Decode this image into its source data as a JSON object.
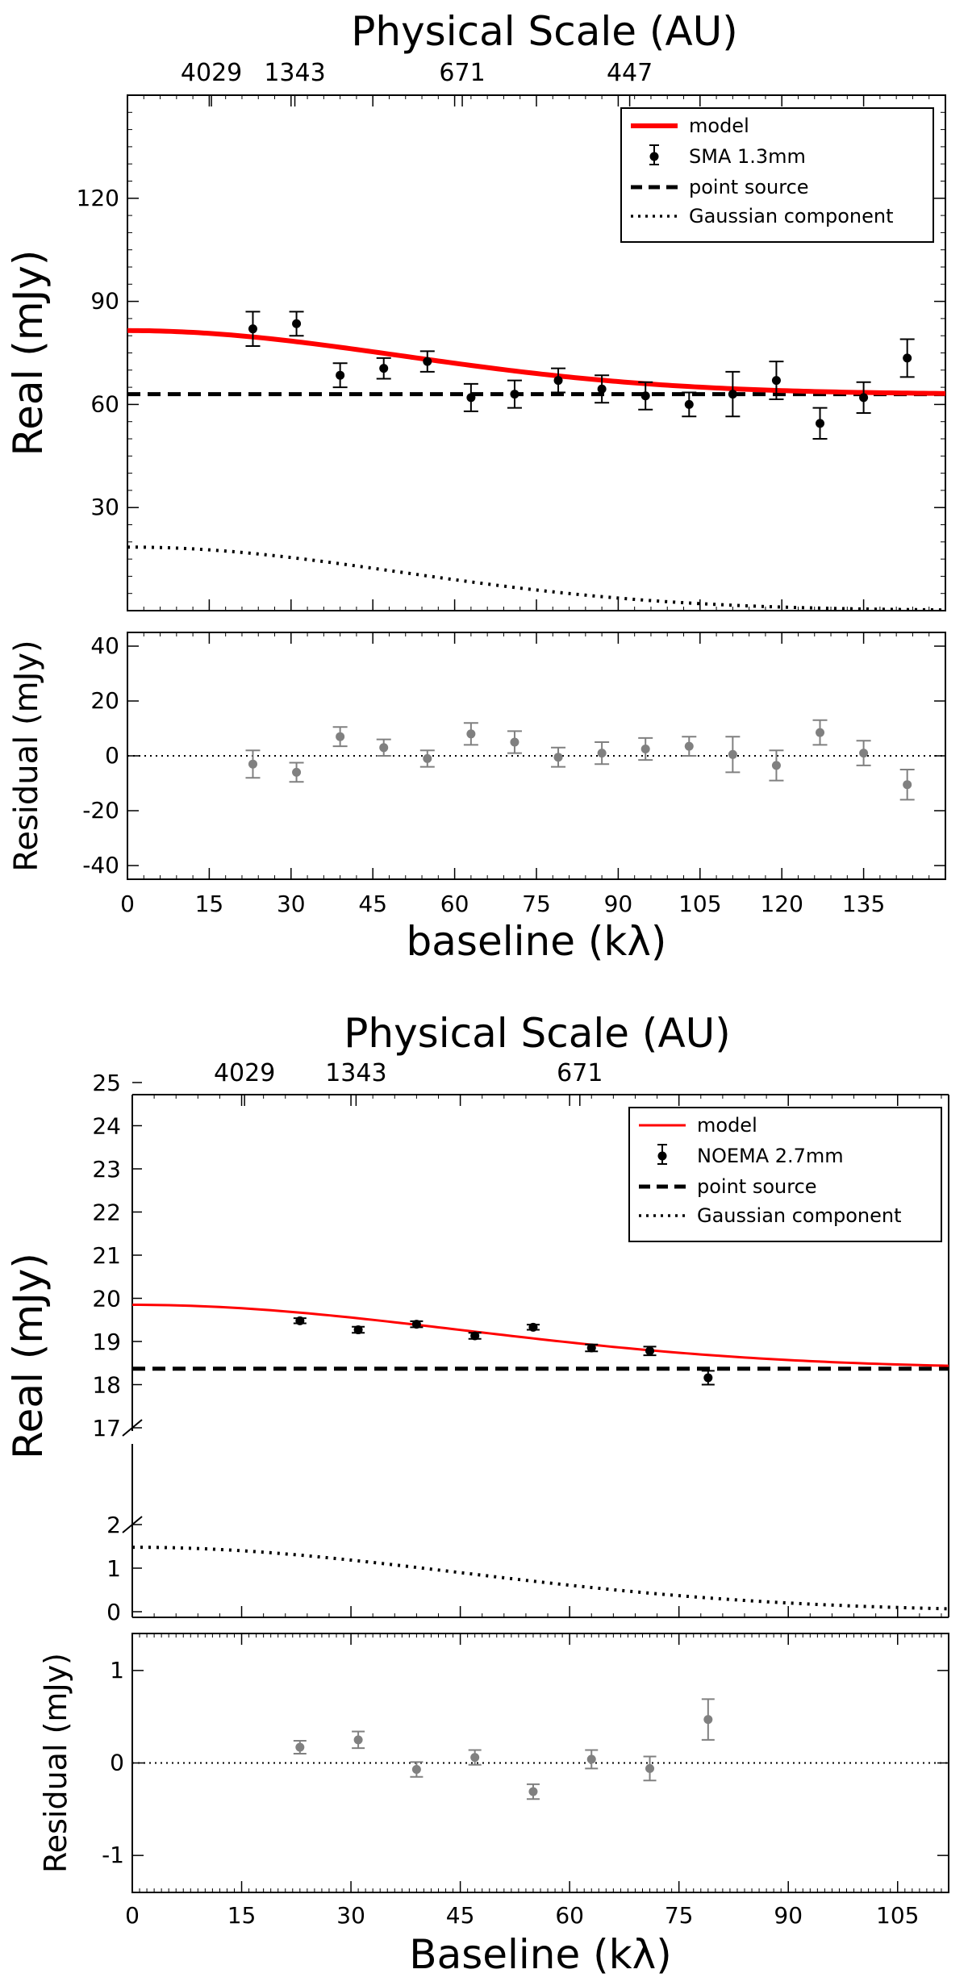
{
  "chart_data": [
    {
      "type": "scatter",
      "panel": "top",
      "title": "Physical Scale (AU)",
      "top_ticks": [
        {
          "label": "4029",
          "x": 15.4
        },
        {
          "label": "1343",
          "x": 30.7
        },
        {
          "label": "671",
          "x": 61.4
        },
        {
          "label": "447",
          "x": 92.1
        }
      ],
      "main": {
        "ylabel": "Real (mJy)",
        "xlim": [
          0,
          150
        ],
        "ylim": [
          0,
          150
        ],
        "yticks": [
          30,
          60,
          90,
          120
        ],
        "legend": [
          "model",
          "SMA 1.3mm",
          "point source",
          "Gaussian component"
        ],
        "legend_placement": "top-right",
        "point_source": 63,
        "gaussian_peak": 18.5,
        "gaussian_sigma_klambda": 50,
        "data": {
          "x": [
            23,
            31,
            39,
            47,
            55,
            63,
            71,
            79,
            87,
            95,
            103,
            111,
            119,
            127,
            135,
            143
          ],
          "y": [
            82,
            83.5,
            68.5,
            70.5,
            72.5,
            62,
            63,
            67,
            64.5,
            62.5,
            60,
            63,
            67,
            54.5,
            62,
            73.5
          ],
          "err": [
            5,
            3.5,
            3.5,
            3,
            3,
            4,
            4,
            3.5,
            4,
            4,
            3.5,
            6.5,
            5.5,
            4.5,
            4.5,
            5.5
          ]
        }
      },
      "residual": {
        "ylabel": "Residual (mJy)",
        "ylim": [
          -45,
          45
        ],
        "yticks": [
          -40,
          -20,
          0,
          20,
          40
        ],
        "x": [
          23,
          31,
          39,
          47,
          55,
          63,
          71,
          79,
          87,
          95,
          103,
          111,
          119,
          127,
          135,
          143
        ],
        "y": [
          -3,
          -6,
          7,
          3,
          -1,
          8,
          5,
          -0.5,
          1,
          2.5,
          3.5,
          0.5,
          -3.5,
          8.5,
          1,
          -10.5
        ],
        "err": [
          5,
          3.5,
          3.5,
          3,
          3,
          4,
          4,
          3.5,
          4,
          4,
          3.5,
          6.5,
          5.5,
          4.5,
          4.5,
          5.5
        ]
      },
      "xlabel": "baseline (kλ)",
      "xticks": [
        0,
        15,
        30,
        45,
        60,
        75,
        90,
        105,
        120,
        135
      ]
    },
    {
      "type": "scatter",
      "panel": "bottom",
      "title": "Physical Scale (AU)",
      "top_ticks": [
        {
          "label": "4029",
          "x": 15.4
        },
        {
          "label": "1343",
          "x": 30.7
        },
        {
          "label": "671",
          "x": 61.4
        }
      ],
      "main": {
        "ylabel": "Real (mJy)",
        "xlim": [
          0,
          112
        ],
        "yticks_upper": [
          17,
          18,
          19,
          20,
          21,
          22,
          23,
          24,
          25
        ],
        "yticks_lower": [
          0,
          1,
          2
        ],
        "upper_range": [
          17,
          25
        ],
        "lower_range": [
          0,
          2
        ],
        "legend": [
          "model",
          "NOEMA 2.7mm",
          "point source",
          "Gaussian component"
        ],
        "legend_placement": "top-right",
        "point_source": 18.37,
        "gaussian_peak": 1.48,
        "gaussian_sigma_klambda": 45,
        "data": {
          "x": [
            23,
            31,
            39,
            47,
            55,
            63,
            71,
            79
          ],
          "y": [
            19.48,
            19.27,
            19.4,
            19.13,
            19.33,
            18.85,
            18.78,
            18.16
          ],
          "err": [
            0.06,
            0.07,
            0.07,
            0.07,
            0.06,
            0.08,
            0.1,
            0.16
          ]
        }
      },
      "residual": {
        "ylabel": "Residual (mJy)",
        "ylim": [
          -1.4,
          1.4
        ],
        "yticks": [
          -1,
          0,
          1
        ],
        "x": [
          23,
          31,
          39,
          47,
          55,
          63,
          71,
          79
        ],
        "y": [
          0.17,
          0.25,
          -0.07,
          0.06,
          -0.31,
          0.04,
          -0.06,
          0.47
        ],
        "err": [
          0.07,
          0.09,
          0.08,
          0.08,
          0.08,
          0.1,
          0.13,
          0.22
        ]
      },
      "xlabel": "Baseline (kλ)",
      "xticks": [
        0,
        15,
        30,
        45,
        60,
        75,
        90,
        105
      ]
    }
  ],
  "colors": {
    "model": "#ff0000",
    "data": "#000000",
    "residual": "#808080"
  }
}
